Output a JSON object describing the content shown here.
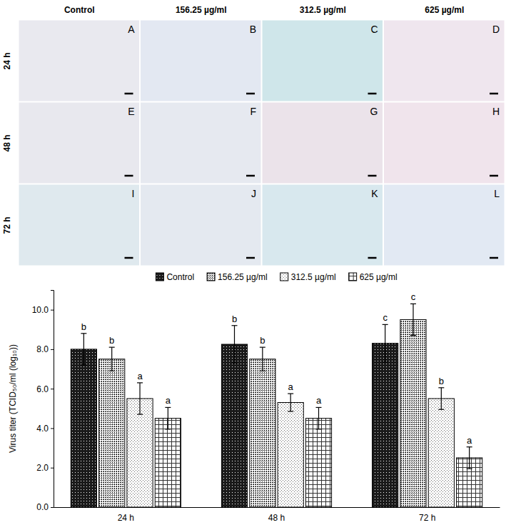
{
  "panels": {
    "columns": [
      "Control",
      "156.25 µg/ml",
      "312.5 µg/ml",
      "625 µg/ml"
    ],
    "rows": [
      "24 h",
      "48 h",
      "72 h"
    ],
    "letters": [
      [
        "A",
        "B",
        "C",
        "D"
      ],
      [
        "E",
        "F",
        "G",
        "H"
      ],
      [
        "I",
        "J",
        "K",
        "L"
      ]
    ]
  },
  "chart_data": {
    "type": "bar",
    "y_label": "Virus titer (TCID₅₀/ml (log₁₀))",
    "categories": [
      "24 h",
      "48 h",
      "72 h"
    ],
    "series": [
      {
        "name": "Control",
        "color": "#1a1a1a",
        "values": [
          8.0,
          8.25,
          8.3
        ],
        "errors": [
          0.8,
          0.95,
          0.95
        ],
        "letters": [
          "b",
          "b",
          "c"
        ]
      },
      {
        "name": "156.25 µg/ml",
        "color": "#ffffff",
        "values": [
          7.5,
          7.5,
          9.5
        ],
        "errors": [
          0.6,
          0.6,
          0.8
        ],
        "letters": [
          "b",
          "b",
          "c"
        ]
      },
      {
        "name": "312.5 µg/ml",
        "color": "#ffffff",
        "values": [
          5.5,
          5.3,
          5.5
        ],
        "errors": [
          0.8,
          0.45,
          0.55
        ],
        "letters": [
          "a",
          "a",
          "b"
        ]
      },
      {
        "name": "625 µg/ml",
        "color": "#ffffff",
        "values": [
          4.5,
          4.5,
          2.5
        ],
        "errors": [
          0.55,
          0.55,
          0.55
        ],
        "letters": [
          "a",
          "a",
          "a"
        ]
      }
    ],
    "ylim": [
      0,
      11
    ],
    "yticks": [
      {
        "value": 0,
        "label": "0.0"
      },
      {
        "value": 2,
        "label": "2.0"
      },
      {
        "value": 4,
        "label": "4.0"
      },
      {
        "value": 6,
        "label": "6.0"
      },
      {
        "value": 8,
        "label": "8.0"
      },
      {
        "value": 10,
        "label": "10.0"
      }
    ],
    "legend": "top"
  }
}
